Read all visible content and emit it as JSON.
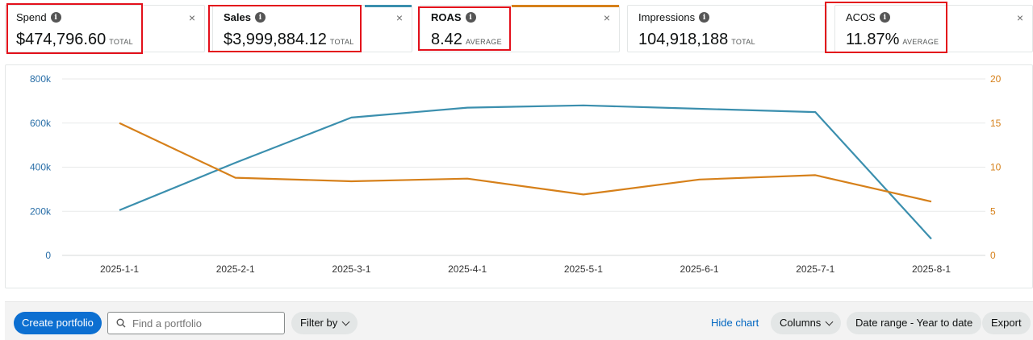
{
  "metrics": [
    {
      "title": "Spend",
      "value": "$474,796.60",
      "sub": "TOTAL",
      "bar_color": ""
    },
    {
      "title": "Sales",
      "value": "$3,999,884.12",
      "sub": "TOTAL",
      "bar_color": "#3b8fae"
    },
    {
      "title": "ROAS",
      "value": "8.42",
      "sub": "AVERAGE",
      "bar_color": "#d6801a"
    },
    {
      "title": "Impressions",
      "value": "104,918,188",
      "sub": "TOTAL",
      "bar_color": ""
    },
    {
      "title": "ACOS",
      "value": "11.87%",
      "sub": "AVERAGE",
      "bar_color": ""
    }
  ],
  "icons": {
    "info": "info-icon",
    "close": "close-icon",
    "search": "search-icon",
    "chevron": "chevron-down-icon"
  },
  "info_glyph": "i",
  "close_glyph": "×",
  "chart_data": {
    "type": "line",
    "categories": [
      "2025-1-1",
      "2025-2-1",
      "2025-3-1",
      "2025-4-1",
      "2025-5-1",
      "2025-6-1",
      "2025-7-1",
      "2025-8-1"
    ],
    "y_left": {
      "ticks": [
        "800k",
        "600k",
        "400k",
        "200k",
        "0"
      ],
      "lim": [
        0,
        800000
      ]
    },
    "y_right": {
      "ticks": [
        "20",
        "15",
        "10",
        "5",
        "0"
      ],
      "lim": [
        0,
        20
      ]
    },
    "grid": true,
    "series": [
      {
        "axis": "left",
        "color": "#3b8fae",
        "values": [
          205000,
          420000,
          625000,
          670000,
          680000,
          665000,
          650000,
          75000
        ]
      },
      {
        "axis": "right",
        "color": "#d6801a",
        "values": [
          15.0,
          8.8,
          8.4,
          8.7,
          6.9,
          8.6,
          9.1,
          6.1
        ]
      }
    ]
  },
  "toolbar": {
    "create_label": "Create portfolio",
    "search_placeholder": "Find a portfolio",
    "filter_label": "Filter by",
    "hide_chart_label": "Hide chart",
    "columns_label": "Columns",
    "date_range_label": "Date range - Year to date",
    "export_label": "Export"
  }
}
